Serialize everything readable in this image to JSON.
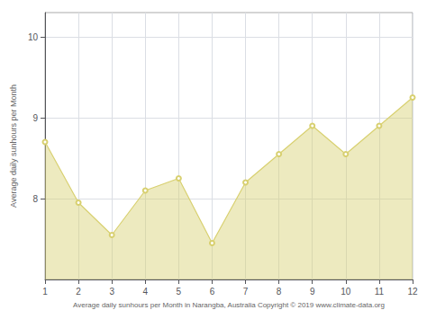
{
  "chart_data": {
    "type": "line",
    "xlabel": "Average daily sunhours per Month in Narangba, Australia Copyright © 2019 www.climate-data.org",
    "ylabel": "Average daily sunhours per Month",
    "x": [
      1,
      2,
      3,
      4,
      5,
      6,
      7,
      8,
      9,
      10,
      11,
      12
    ],
    "values": [
      8.7,
      7.95,
      7.55,
      8.1,
      8.25,
      7.45,
      8.2,
      8.55,
      8.9,
      8.55,
      8.9,
      9.25
    ],
    "xlim": [
      1,
      12
    ],
    "ylim": [
      7.0,
      10.3
    ],
    "xticks": [
      1,
      2,
      3,
      4,
      5,
      6,
      7,
      8,
      9,
      10,
      11,
      12
    ],
    "yticks": [
      8,
      9,
      10
    ],
    "grid": true,
    "color": "#d8d070",
    "marker": "circle"
  }
}
